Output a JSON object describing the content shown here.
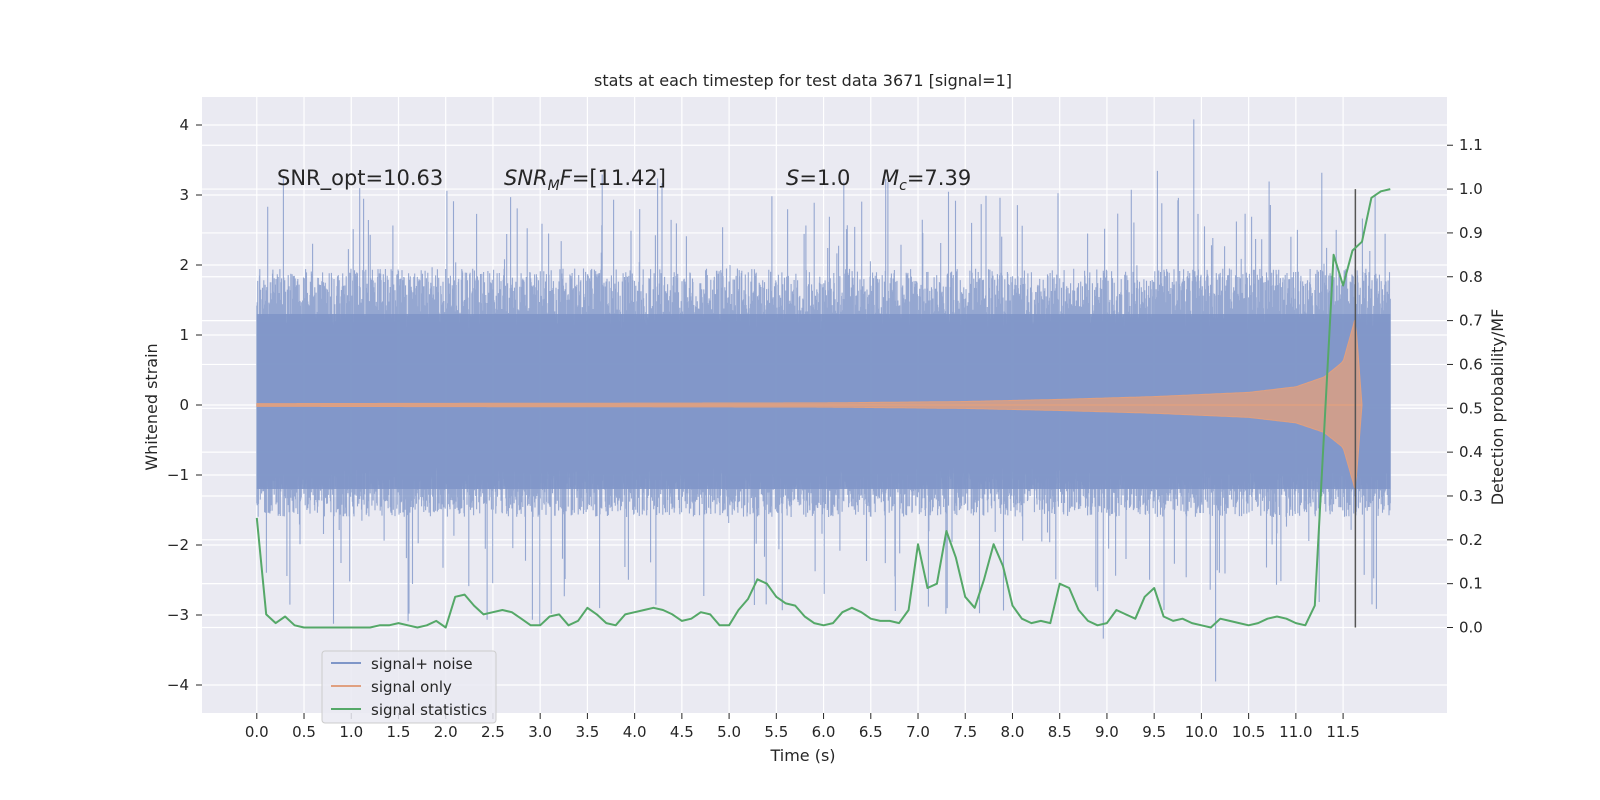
{
  "chart_data": {
    "type": "line",
    "title": "stats at each timestep for test data 3671 [signal=1]",
    "xlabel": "Time (s)",
    "ylabel": "Whitened strain",
    "ylabel_right": "Detection probability/MF",
    "xlim": [
      -0.58,
      12.6
    ],
    "ylim": [
      -4.4,
      4.4
    ],
    "ylim_right": [
      -0.195,
      1.21
    ],
    "x_ticks": [
      "0.0",
      "0.5",
      "1.0",
      "1.5",
      "2.0",
      "2.5",
      "3.0",
      "3.5",
      "4.0",
      "4.5",
      "5.0",
      "5.5",
      "6.0",
      "6.5",
      "7.0",
      "7.5",
      "8.0",
      "8.5",
      "9.0",
      "9.5",
      "10.0",
      "10.5",
      "11.0",
      "11.5"
    ],
    "y_ticks": [
      "4",
      "3",
      "2",
      "1",
      "0",
      "−1",
      "−2",
      "−3",
      "−4"
    ],
    "y_right_ticks": [
      "1.1",
      "1.0",
      "0.9",
      "0.8",
      "0.7",
      "0.6",
      "0.5",
      "0.4",
      "0.3",
      "0.2",
      "0.1",
      "0.0"
    ],
    "grid": true,
    "legend_position": "lower-left",
    "annotations": {
      "snr_opt": "SNR_opt=10.63",
      "snr_mf_sym": "SNR",
      "snr_mf_sub": "M",
      "snr_mf_f": "F",
      "snr_mf_val": "=[11.42]",
      "s_sym": "S",
      "s_val": "=1.0",
      "mc_sym": "M",
      "mc_sub": "c",
      "mc_val": "=7.39"
    },
    "merger_time": 11.63,
    "series": [
      {
        "name": "signal+ noise",
        "color": "#7f96c8",
        "x_range": [
          0.0,
          12.0
        ],
        "envelope_typical": [
          -1.6,
          1.95
        ],
        "peak_max": 4.08,
        "peak_min": -3.95
      },
      {
        "name": "signal only",
        "color": "#e0a080",
        "x_range": [
          0.0,
          11.7
        ],
        "amplitude": [
          [
            0.0,
            0.02
          ],
          [
            6.0,
            0.03
          ],
          [
            7.5,
            0.05
          ],
          [
            8.5,
            0.08
          ],
          [
            9.5,
            0.12
          ],
          [
            10.5,
            0.18
          ],
          [
            11.0,
            0.26
          ],
          [
            11.3,
            0.4
          ],
          [
            11.5,
            0.62
          ],
          [
            11.6,
            1.1
          ],
          [
            11.63,
            1.25
          ],
          [
            11.7,
            0.0
          ]
        ]
      },
      {
        "name": "signal statistics",
        "color": "#55a868",
        "axis": "right",
        "x": [
          0.0,
          0.1,
          0.2,
          0.3,
          0.4,
          0.5,
          0.6,
          0.8,
          1.0,
          1.2,
          1.3,
          1.4,
          1.5,
          1.6,
          1.7,
          1.8,
          1.9,
          2.0,
          2.1,
          2.2,
          2.3,
          2.4,
          2.5,
          2.6,
          2.7,
          2.8,
          2.9,
          3.0,
          3.1,
          3.2,
          3.3,
          3.4,
          3.5,
          3.6,
          3.7,
          3.8,
          3.9,
          4.0,
          4.1,
          4.2,
          4.3,
          4.4,
          4.5,
          4.6,
          4.7,
          4.8,
          4.9,
          5.0,
          5.1,
          5.2,
          5.3,
          5.4,
          5.5,
          5.6,
          5.7,
          5.8,
          5.9,
          6.0,
          6.1,
          6.2,
          6.3,
          6.4,
          6.5,
          6.6,
          6.7,
          6.8,
          6.9,
          7.0,
          7.1,
          7.2,
          7.3,
          7.4,
          7.5,
          7.6,
          7.7,
          7.8,
          7.9,
          8.0,
          8.1,
          8.2,
          8.3,
          8.4,
          8.5,
          8.6,
          8.7,
          8.8,
          8.9,
          9.0,
          9.1,
          9.2,
          9.3,
          9.4,
          9.5,
          9.6,
          9.7,
          9.8,
          9.9,
          10.0,
          10.1,
          10.2,
          10.3,
          10.4,
          10.5,
          10.6,
          10.7,
          10.8,
          10.9,
          11.0,
          11.1,
          11.2,
          11.3,
          11.4,
          11.5,
          11.6,
          11.7,
          11.8,
          11.9,
          12.0
        ],
        "values": [
          0.25,
          0.03,
          0.01,
          0.025,
          0.005,
          0.0,
          0.0,
          0.0,
          0.0,
          0.0,
          0.005,
          0.005,
          0.01,
          0.005,
          0.0,
          0.005,
          0.015,
          0.0,
          0.07,
          0.075,
          0.05,
          0.03,
          0.035,
          0.04,
          0.035,
          0.02,
          0.005,
          0.005,
          0.025,
          0.03,
          0.005,
          0.015,
          0.045,
          0.03,
          0.01,
          0.005,
          0.03,
          0.035,
          0.04,
          0.045,
          0.04,
          0.03,
          0.015,
          0.02,
          0.035,
          0.03,
          0.005,
          0.005,
          0.04,
          0.065,
          0.11,
          0.1,
          0.07,
          0.055,
          0.05,
          0.025,
          0.01,
          0.005,
          0.01,
          0.035,
          0.045,
          0.035,
          0.02,
          0.015,
          0.015,
          0.01,
          0.04,
          0.19,
          0.09,
          0.1,
          0.22,
          0.16,
          0.07,
          0.045,
          0.11,
          0.19,
          0.14,
          0.05,
          0.02,
          0.01,
          0.015,
          0.01,
          0.1,
          0.09,
          0.04,
          0.015,
          0.005,
          0.01,
          0.04,
          0.03,
          0.02,
          0.07,
          0.09,
          0.025,
          0.015,
          0.02,
          0.01,
          0.005,
          0.0,
          0.02,
          0.015,
          0.01,
          0.005,
          0.01,
          0.02,
          0.025,
          0.02,
          0.01,
          0.005,
          0.05,
          0.45,
          0.85,
          0.78,
          0.86,
          0.88,
          0.98,
          0.995,
          1.0
        ]
      }
    ]
  }
}
